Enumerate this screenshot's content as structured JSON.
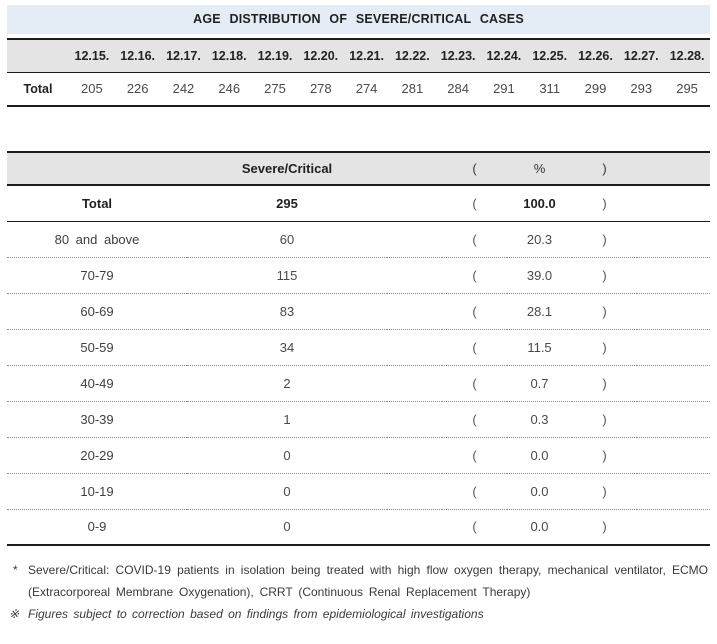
{
  "title": "AGE DISTRIBUTION OF SEVERE/CRITICAL CASES",
  "daily_table": {
    "row_label": "Total",
    "dates": [
      "12.15.",
      "12.16.",
      "12.17.",
      "12.18.",
      "12.19.",
      "12.20.",
      "12.21.",
      "12.22.",
      "12.23.",
      "12.24.",
      "12.25.",
      "12.26.",
      "12.27.",
      "12.28."
    ],
    "values": [
      205,
      226,
      242,
      246,
      275,
      278,
      274,
      281,
      284,
      291,
      311,
      299,
      293,
      295
    ]
  },
  "age_table": {
    "col_header": "Severe/Critical",
    "pct_open": "(",
    "pct_label": "%",
    "pct_close": ")",
    "rows": [
      {
        "label": "Total",
        "value": "295",
        "pct": "100.0",
        "bold": true
      },
      {
        "label": "80 and above",
        "value": "60",
        "pct": "20.3"
      },
      {
        "label": "70-79",
        "value": "115",
        "pct": "39.0"
      },
      {
        "label": "60-69",
        "value": "83",
        "pct": "28.1"
      },
      {
        "label": "50-59",
        "value": "34",
        "pct": "11.5"
      },
      {
        "label": "40-49",
        "value": "2",
        "pct": "0.7"
      },
      {
        "label": "30-39",
        "value": "1",
        "pct": "0.3"
      },
      {
        "label": "20-29",
        "value": "0",
        "pct": "0.0"
      },
      {
        "label": "10-19",
        "value": "0",
        "pct": "0.0"
      },
      {
        "label": "0-9",
        "value": "0",
        "pct": "0.0"
      }
    ]
  },
  "footnotes": {
    "note1_marker": "*",
    "note1": "Severe/Critical: COVID-19 patients in isolation being treated with high flow oxygen therapy, mechanical ventilator, ECMO (Extracorporeal Membrane Oxygenation), CRRT (Continuous Renal Replacement Therapy)",
    "note2_marker": "※",
    "note2": "Figures subject to correction based on findings from epidemiological investigations"
  },
  "colors": {
    "title_bg": "#e4edf6",
    "header_bg": "#e4e4e4",
    "border": "#1c1c1c"
  }
}
